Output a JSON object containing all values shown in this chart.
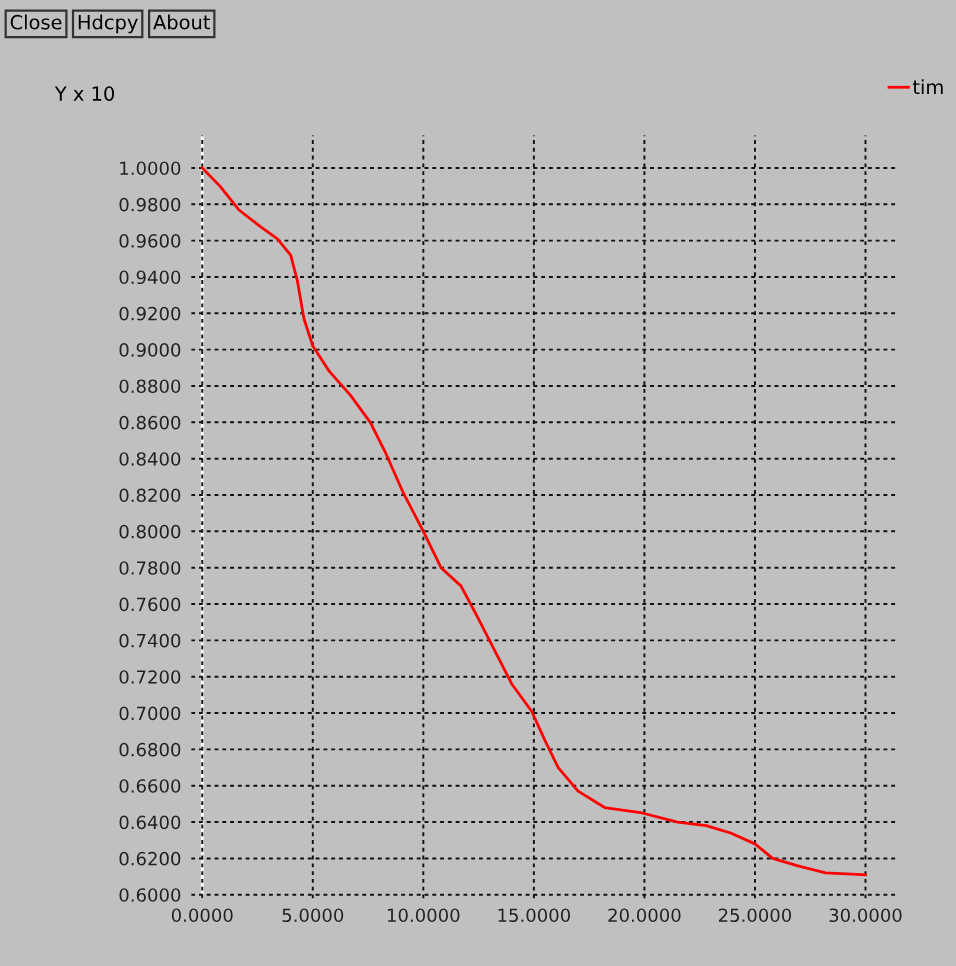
{
  "chart_data": {
    "type": "line",
    "ylabel": "Y x 10",
    "annotations": [
      "Close",
      "Hdcpy",
      "About"
    ],
    "x": [
      0,
      0.8,
      1.65,
      2.6,
      3.4,
      4.0,
      4.3,
      4.6,
      5.0,
      5.75,
      6.7,
      7.6,
      8.3,
      9.1,
      10.0,
      10.8,
      11.7,
      12.4,
      13.2,
      14.0,
      14.9,
      15.5,
      16.1,
      17.0,
      18.2,
      19.9,
      21.5,
      22.8,
      23.9,
      25.0,
      25.8,
      26.9,
      28.2,
      30.0
    ],
    "series": [
      {
        "name": "tim",
        "color": "#ff0000",
        "values": [
          1.0,
          0.99,
          0.977,
          0.968,
          0.961,
          0.952,
          0.938,
          0.917,
          0.902,
          0.888,
          0.875,
          0.86,
          0.843,
          0.821,
          0.8,
          0.78,
          0.77,
          0.754,
          0.735,
          0.716,
          0.701,
          0.685,
          0.67,
          0.657,
          0.648,
          0.645,
          0.64,
          0.638,
          0.634,
          0.628,
          0.62,
          0.616,
          0.612,
          0.611
        ]
      }
    ],
    "xlim": [
      -0.5,
      31.5
    ],
    "ylim": [
      0.598,
      1.018
    ],
    "xticks": [
      {
        "value": 0,
        "label": "0.0000"
      },
      {
        "value": 5,
        "label": "5.0000"
      },
      {
        "value": 10,
        "label": "10.0000"
      },
      {
        "value": 15,
        "label": "15.0000"
      },
      {
        "value": 20,
        "label": "20.0000"
      },
      {
        "value": 25,
        "label": "25.0000"
      },
      {
        "value": 30,
        "label": "30.0000"
      }
    ],
    "yticks": [
      {
        "value": 0.6,
        "label": "0.6000"
      },
      {
        "value": 0.62,
        "label": "0.6200"
      },
      {
        "value": 0.64,
        "label": "0.6400"
      },
      {
        "value": 0.66,
        "label": "0.6600"
      },
      {
        "value": 0.68,
        "label": "0.6800"
      },
      {
        "value": 0.7,
        "label": "0.7000"
      },
      {
        "value": 0.72,
        "label": "0.7200"
      },
      {
        "value": 0.74,
        "label": "0.7400"
      },
      {
        "value": 0.76,
        "label": "0.7600"
      },
      {
        "value": 0.78,
        "label": "0.7800"
      },
      {
        "value": 0.8,
        "label": "0.8000"
      },
      {
        "value": 0.82,
        "label": "0.8200"
      },
      {
        "value": 0.84,
        "label": "0.8400"
      },
      {
        "value": 0.86,
        "label": "0.8600"
      },
      {
        "value": 0.88,
        "label": "0.8800"
      },
      {
        "value": 0.9,
        "label": "0.9000"
      },
      {
        "value": 0.92,
        "label": "0.9200"
      },
      {
        "value": 0.94,
        "label": "0.9400"
      },
      {
        "value": 0.96,
        "label": "0.9600"
      },
      {
        "value": 0.98,
        "label": "0.9800"
      },
      {
        "value": 1.0,
        "label": "1.0000"
      }
    ],
    "grid": true,
    "legend": "top right",
    "marker": "none",
    "line_style": "solid"
  }
}
